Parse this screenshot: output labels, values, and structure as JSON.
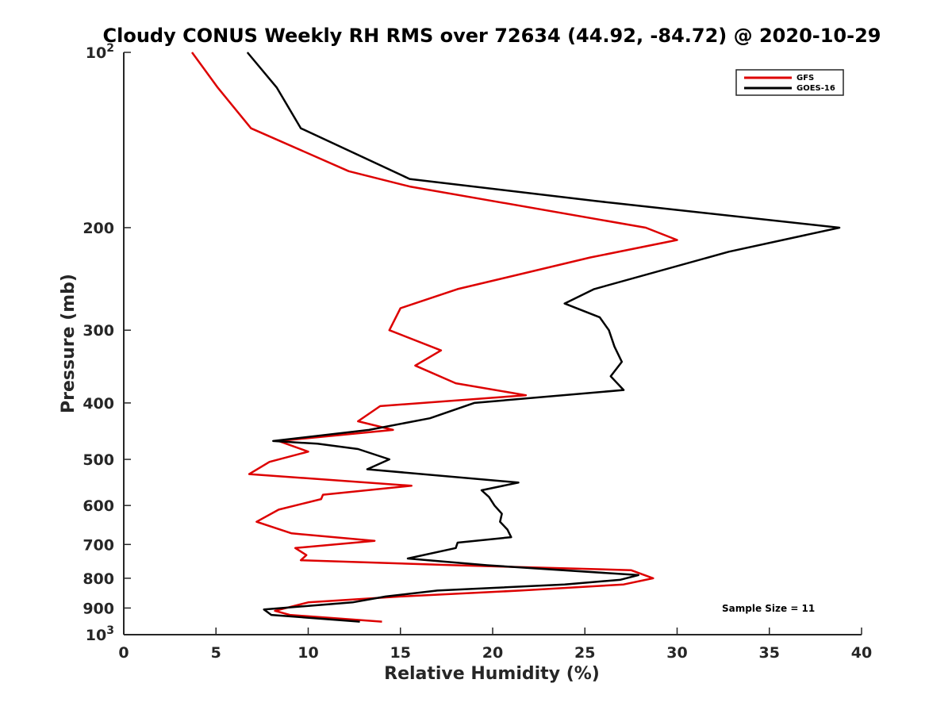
{
  "chart_data": {
    "type": "line",
    "title": "Cloudy CONUS Weekly RH RMS over 72634 (44.92, -84.72) @ 2020-10-29",
    "xlabel": "Relative Humidity (%)",
    "ylabel": "Pressure (mb)",
    "xlim": [
      0,
      40
    ],
    "ylim": [
      100,
      1000
    ],
    "y_scale": "log",
    "y_reversed": true,
    "x_ticks": [
      {
        "value": 0,
        "label": "0"
      },
      {
        "value": 5,
        "label": "5"
      },
      {
        "value": 10,
        "label": "10"
      },
      {
        "value": 15,
        "label": "15"
      },
      {
        "value": 20,
        "label": "20"
      },
      {
        "value": 25,
        "label": "25"
      },
      {
        "value": 30,
        "label": "30"
      },
      {
        "value": 35,
        "label": "35"
      },
      {
        "value": 40,
        "label": "40"
      }
    ],
    "y_ticks": [
      {
        "value": 100,
        "base": "10",
        "exp": "2"
      },
      {
        "value": 200,
        "label": "200"
      },
      {
        "value": 300,
        "label": "300"
      },
      {
        "value": 400,
        "label": "400"
      },
      {
        "value": 500,
        "label": "500"
      },
      {
        "value": 600,
        "label": "600"
      },
      {
        "value": 700,
        "label": "700"
      },
      {
        "value": 800,
        "label": "800"
      },
      {
        "value": 900,
        "label": "900"
      },
      {
        "value": 1000,
        "base": "10",
        "exp": "3"
      }
    ],
    "grid": false,
    "legend_position": "top-right",
    "annotation": "Sample Size = 11",
    "series": [
      {
        "name": "GFS",
        "color": "#dd0000",
        "points": [
          [
            3.7,
            100
          ],
          [
            5.1,
            115
          ],
          [
            6.9,
            135
          ],
          [
            12.2,
            160
          ],
          [
            15.5,
            170
          ],
          [
            28.3,
            200
          ],
          [
            30.0,
            210
          ],
          [
            25.3,
            225
          ],
          [
            18.1,
            255
          ],
          [
            15.0,
            275
          ],
          [
            14.4,
            300
          ],
          [
            17.2,
            325
          ],
          [
            15.8,
            345
          ],
          [
            18.0,
            370
          ],
          [
            21.8,
            388
          ],
          [
            13.9,
            405
          ],
          [
            12.7,
            430
          ],
          [
            14.6,
            445
          ],
          [
            8.4,
            465
          ],
          [
            10.0,
            485
          ],
          [
            7.9,
            505
          ],
          [
            6.8,
            530
          ],
          [
            15.6,
            555
          ],
          [
            10.8,
            575
          ],
          [
            10.7,
            585
          ],
          [
            8.4,
            610
          ],
          [
            7.2,
            640
          ],
          [
            9.1,
            670
          ],
          [
            13.6,
            690
          ],
          [
            9.3,
            710
          ],
          [
            9.9,
            730
          ],
          [
            9.6,
            745
          ],
          [
            18.0,
            760
          ],
          [
            27.5,
            775
          ],
          [
            28.7,
            800
          ],
          [
            27.1,
            820
          ],
          [
            21.5,
            840
          ],
          [
            15.0,
            860
          ],
          [
            10.0,
            880
          ],
          [
            8.2,
            910
          ],
          [
            9.0,
            925
          ],
          [
            14.0,
            950
          ]
        ]
      },
      {
        "name": "GOES-16",
        "color": "#000000",
        "points": [
          [
            6.7,
            100
          ],
          [
            8.3,
            115
          ],
          [
            9.6,
            135
          ],
          [
            15.5,
            165
          ],
          [
            25.6,
            180
          ],
          [
            38.8,
            200
          ],
          [
            32.8,
            220
          ],
          [
            25.5,
            255
          ],
          [
            23.9,
            270
          ],
          [
            25.8,
            285
          ],
          [
            26.3,
            300
          ],
          [
            26.6,
            320
          ],
          [
            27.0,
            340
          ],
          [
            26.4,
            360
          ],
          [
            27.1,
            380
          ],
          [
            19.0,
            400
          ],
          [
            16.6,
            425
          ],
          [
            13.3,
            445
          ],
          [
            8.1,
            465
          ],
          [
            10.5,
            470
          ],
          [
            12.7,
            480
          ],
          [
            14.4,
            500
          ],
          [
            13.2,
            520
          ],
          [
            21.4,
            548
          ],
          [
            19.4,
            565
          ],
          [
            19.8,
            580
          ],
          [
            20.1,
            600
          ],
          [
            20.5,
            620
          ],
          [
            20.4,
            640
          ],
          [
            20.8,
            660
          ],
          [
            21.0,
            680
          ],
          [
            18.1,
            695
          ],
          [
            18.0,
            710
          ],
          [
            15.4,
            740
          ],
          [
            19.7,
            760
          ],
          [
            27.9,
            790
          ],
          [
            26.9,
            805
          ],
          [
            23.9,
            820
          ],
          [
            17.0,
            840
          ],
          [
            14.2,
            860
          ],
          [
            12.4,
            880
          ],
          [
            7.6,
            905
          ],
          [
            8.0,
            925
          ],
          [
            12.8,
            950
          ]
        ]
      }
    ]
  }
}
